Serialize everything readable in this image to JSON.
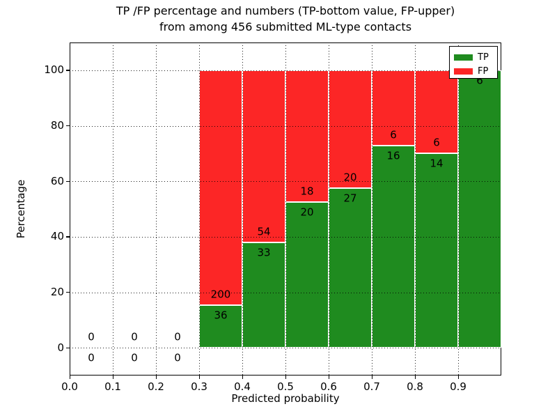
{
  "title": {
    "line1": "TP /FP percentage and numbers (TP-bottom value, FP-upper)",
    "line2": "from among 456 submitted ML-type contacts"
  },
  "axes": {
    "xlabel": "Predicted probability",
    "ylabel": "Percentage",
    "x_tick_labels": [
      "0.0",
      "0.1",
      "0.2",
      "0.3",
      "0.4",
      "0.5",
      "0.6",
      "0.7",
      "0.8",
      "0.9"
    ],
    "x_tick_values": [
      0,
      0.1,
      0.2,
      0.3,
      0.4,
      0.5,
      0.6,
      0.7,
      0.8,
      0.9
    ],
    "y_tick_labels": [
      "0",
      "20",
      "40",
      "60",
      "80",
      "100"
    ],
    "y_tick_values": [
      0,
      20,
      40,
      60,
      80,
      100
    ],
    "xlim": [
      0,
      1.0
    ],
    "ylim": [
      -10,
      110
    ],
    "grid": "dotted"
  },
  "legend": {
    "position": "upper right",
    "items": [
      {
        "label": "TP",
        "color_key": "tp"
      },
      {
        "label": "FP",
        "color_key": "fp"
      }
    ]
  },
  "colors": {
    "tp": "#1f8b1f",
    "fp": "#fc2626",
    "frame": "#000000",
    "background": "#ffffff"
  },
  "chart_data": {
    "type": "bar",
    "stacked": true,
    "normalized_to": 100,
    "title": "TP /FP percentage and numbers (TP-bottom value, FP-upper) from among 456 submitted ML-type contacts",
    "xlabel": "Predicted probability",
    "ylabel": "Percentage",
    "total_contacts": 456,
    "bin_width": 0.1,
    "categories": [
      "0.0-0.1",
      "0.1-0.2",
      "0.2-0.3",
      "0.3-0.4",
      "0.4-0.5",
      "0.5-0.6",
      "0.6-0.7",
      "0.7-0.8",
      "0.8-0.9",
      "0.9-1.0"
    ],
    "bins": [
      {
        "x0": 0.0,
        "tp": 0,
        "fp": 0
      },
      {
        "x0": 0.1,
        "tp": 0,
        "fp": 0
      },
      {
        "x0": 0.2,
        "tp": 0,
        "fp": 0
      },
      {
        "x0": 0.3,
        "tp": 36,
        "fp": 200
      },
      {
        "x0": 0.4,
        "tp": 33,
        "fp": 54
      },
      {
        "x0": 0.5,
        "tp": 20,
        "fp": 18
      },
      {
        "x0": 0.6,
        "tp": 27,
        "fp": 20
      },
      {
        "x0": 0.7,
        "tp": 16,
        "fp": 6
      },
      {
        "x0": 0.8,
        "tp": 14,
        "fp": 6
      },
      {
        "x0": 0.9,
        "tp": 6,
        "fp": 0
      }
    ],
    "series": [
      {
        "name": "TP",
        "values": [
          0,
          0,
          0,
          36,
          33,
          20,
          27,
          16,
          14,
          6
        ]
      },
      {
        "name": "FP",
        "values": [
          0,
          0,
          0,
          200,
          54,
          18,
          20,
          6,
          6,
          0
        ]
      }
    ],
    "tp_percent_of_bin": [
      null,
      null,
      null,
      15.25,
      37.93,
      52.63,
      57.45,
      72.73,
      70.0,
      100.0
    ]
  }
}
